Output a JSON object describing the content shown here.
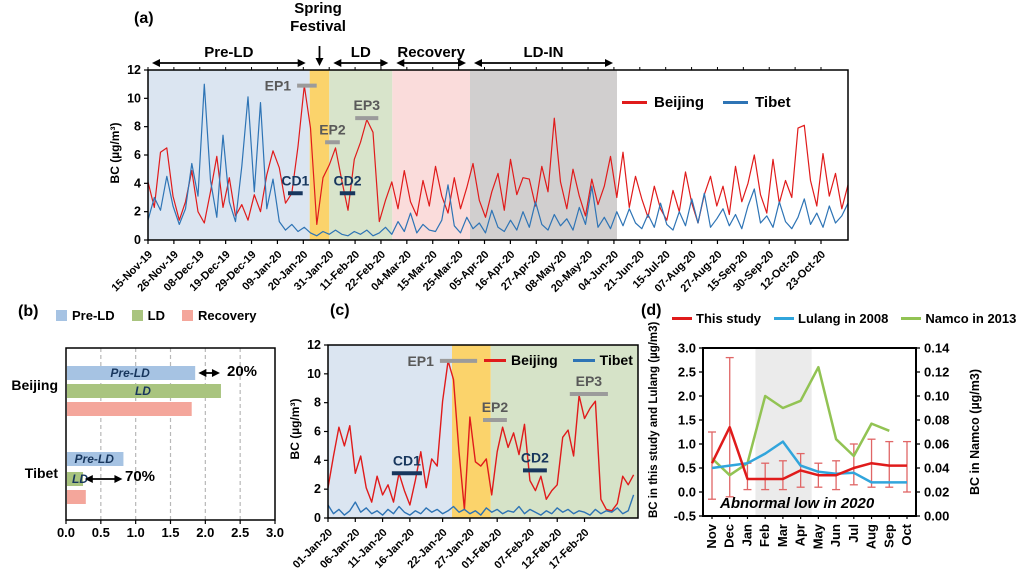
{
  "chart_data": {
    "a": {
      "panel_label": "(a)",
      "type": "line",
      "ylabel": "BC (µg/m³)",
      "ylim": [
        0,
        12
      ],
      "yticks": [
        0,
        2,
        4,
        6,
        8,
        10,
        12
      ],
      "xticklabels": [
        "15-Nov-19",
        "26-Nov-19",
        "08-Dec-19",
        "19-Dec-19",
        "29-Dec-19",
        "09-Jan-20",
        "20-Jan-20",
        "31-Jan-20",
        "11-Feb-20",
        "22-Feb-20",
        "04-Mar-20",
        "15-Mar-20",
        "25-Mar-20",
        "05-Apr-20",
        "16-Apr-20",
        "27-Apr-20",
        "08-May-20",
        "20-May-20",
        "04-Jun-20",
        "21-Jun-20",
        "15-Jul-20",
        "07-Aug-20",
        "27-Aug-20",
        "15-Sep-20",
        "30-Sep-20",
        "12-Oct-20",
        "23-Oct-20"
      ],
      "legend": [
        {
          "label": "Beijing",
          "color": "#e01b1b"
        },
        {
          "label": "Tibet",
          "color": "#2e74b5"
        }
      ],
      "periods": [
        {
          "label": "Pre-LD",
          "f1": 0.0,
          "f2": 0.231,
          "color": "#dbe5f1",
          "arrow": true
        },
        {
          "label": "Spring\nFestival",
          "f1": 0.231,
          "f2": 0.259,
          "color": "#fbd36b",
          "arrow": false
        },
        {
          "label": "LD",
          "f1": 0.259,
          "f2": 0.349,
          "color": "#d8e4cb",
          "arrow": true
        },
        {
          "label": "Recovery",
          "f1": 0.349,
          "f2": 0.46,
          "color": "#fadcdb",
          "arrow": true
        },
        {
          "label": "LD-IN",
          "f1": 0.46,
          "f2": 0.67,
          "color": "#d1cfcf",
          "arrow": true
        }
      ],
      "markers": [
        {
          "label": "EP1",
          "value": 10.9,
          "f1": 0.213,
          "f2": 0.241,
          "color": "#9b9b9b",
          "text_color": "#595959",
          "pos": "left"
        },
        {
          "label": "EP2",
          "value": 6.9,
          "f1": 0.253,
          "f2": 0.274,
          "color": "#9b9b9b",
          "text_color": "#595959",
          "pos": "top"
        },
        {
          "label": "EP3",
          "value": 8.6,
          "f1": 0.296,
          "f2": 0.329,
          "color": "#9b9b9b",
          "text_color": "#595959",
          "pos": "top"
        },
        {
          "label": "CD1",
          "value": 3.3,
          "f1": 0.2,
          "f2": 0.221,
          "color": "#17365d",
          "text_color": "#17365d",
          "pos": "top"
        },
        {
          "label": "CD2",
          "value": 3.3,
          "f1": 0.274,
          "f2": 0.296,
          "color": "#17365d",
          "text_color": "#17365d",
          "pos": "top"
        }
      ],
      "series": [
        {
          "name": "Beijing",
          "color": "#e01b1b",
          "values": [
            4.1,
            2.3,
            6.2,
            6.5,
            3.1,
            1.4,
            2.7,
            4.9,
            2.0,
            1.2,
            3.4,
            5.9,
            2.3,
            4.4,
            1.7,
            2.5,
            1.4,
            3.2,
            2.0,
            4.6,
            6.3,
            5.1,
            2.6,
            3.3,
            6.6,
            10.9,
            7.9,
            1.1,
            4.4,
            5.3,
            6.5,
            4.2,
            2.1,
            5.7,
            6.9,
            8.5,
            7.6,
            1.3,
            2.8,
            4.1,
            2.2,
            4.9,
            2.7,
            1.7,
            4.2,
            2.4,
            5.2,
            3.1,
            1.9,
            4.4,
            2.2,
            3.7,
            5.4,
            2.8,
            1.6,
            3.4,
            4.7,
            2.1,
            5.7,
            3.2,
            4.4,
            4.3,
            2.4,
            5.2,
            3.4,
            8.6,
            4.1,
            2.2,
            5.0,
            3.1,
            1.7,
            4.3,
            2.5,
            3.8,
            5.9,
            3.0,
            6.2,
            2.3,
            4.5,
            2.9,
            1.6,
            3.8,
            2.2,
            1.4,
            3.5,
            2.0,
            4.8,
            2.6,
            1.2,
            3.2,
            4.5,
            2.4,
            3.8,
            1.8,
            5.2,
            2.7,
            4.0,
            6.0,
            3.2,
            1.9,
            5.7,
            2.6,
            4.2,
            3.0,
            7.9,
            8.1,
            4.2,
            2.4,
            6.1,
            3.1,
            4.7,
            2.2,
            3.9
          ]
        },
        {
          "name": "Tibet",
          "color": "#2e74b5",
          "values": [
            1.4,
            3.0,
            2.1,
            4.5,
            2.4,
            1.1,
            2.2,
            5.4,
            3.1,
            11.0,
            4.2,
            1.6,
            7.4,
            2.7,
            1.3,
            5.2,
            10.1,
            3.4,
            9.7,
            2.2,
            4.3,
            1.3,
            0.7,
            1.1,
            0.6,
            0.9,
            0.5,
            0.3,
            0.6,
            0.4,
            0.7,
            0.4,
            0.3,
            0.6,
            0.4,
            0.7,
            0.3,
            0.5,
            0.9,
            0.4,
            1.3,
            0.6,
            1.9,
            0.5,
            1.1,
            0.7,
            0.6,
            1.4,
            3.9,
            1.0,
            0.5,
            1.6,
            0.8,
            1.2,
            0.5,
            2.1,
            0.9,
            0.6,
            1.4,
            0.7,
            2.0,
            0.9,
            2.7,
            1.1,
            0.7,
            1.8,
            1.0,
            1.5,
            0.7,
            2.3,
            1.1,
            3.8,
            0.9,
            1.6,
            0.8,
            2.0,
            1.0,
            2.2,
            1.2,
            0.8,
            1.8,
            0.9,
            2.6,
            1.1,
            0.7,
            2.0,
            1.0,
            2.9,
            1.2,
            3.3,
            0.9,
            1.5,
            2.2,
            1.0,
            1.8,
            0.8,
            2.4,
            3.6,
            1.2,
            1.7,
            0.9,
            2.7,
            1.3,
            0.8,
            1.6,
            2.9,
            1.1,
            1.9,
            0.9,
            2.4,
            1.2,
            1.7,
            2.6
          ]
        }
      ]
    },
    "b": {
      "panel_label": "(b)",
      "type": "bar",
      "legend": [
        {
          "label": "Pre-LD",
          "color": "#a6c3e3"
        },
        {
          "label": "LD",
          "color": "#a9c47f"
        },
        {
          "label": "Recovery",
          "color": "#f4a69b"
        }
      ],
      "groups": [
        "Beijing",
        "Tibet"
      ],
      "series": [
        {
          "name": "Pre-LD",
          "color": "#a6c3e3",
          "values": [
            1.84,
            0.81
          ]
        },
        {
          "name": "LD",
          "color": "#a9c47f",
          "values": [
            2.21,
            0.23
          ]
        },
        {
          "name": "Recovery",
          "color": "#f4a69b",
          "values": [
            1.79,
            0.27
          ]
        }
      ],
      "bar_labels": [
        {
          "group": 0,
          "series": 0,
          "text": "Pre-LD"
        },
        {
          "group": 0,
          "series": 1,
          "text": "LD"
        },
        {
          "group": 1,
          "series": 0,
          "text": "Pre-LD"
        },
        {
          "group": 1,
          "series": 1,
          "text": "LD"
        }
      ],
      "annotations": [
        {
          "label": "20%",
          "group": 0,
          "row": 0,
          "from": 1.9,
          "to": 2.21
        },
        {
          "label": "70%",
          "group": 1,
          "row": 1,
          "from": 0.27,
          "to": 0.81
        }
      ],
      "xlim": [
        0,
        3
      ],
      "xticks": [
        "0.0",
        "0.5",
        "1.0",
        "1.5",
        "2.0",
        "2.5",
        "3.0"
      ]
    },
    "c": {
      "panel_label": "(c)",
      "type": "line",
      "ylabel": "BC (µg/m³)",
      "ylim": [
        0,
        12
      ],
      "yticks": [
        0,
        2,
        4,
        6,
        8,
        10,
        12
      ],
      "xticklabels": [
        "01-Jan-20",
        "06-Jan-20",
        "11-Jan-20",
        "16-Jan-20",
        "22-Jan-20",
        "27-Jan-20",
        "01-Feb-20",
        "07-Feb-20",
        "12-Feb-20",
        "17-Feb-20"
      ],
      "xtick_days": [
        0,
        5,
        10,
        15,
        21,
        26,
        31,
        37,
        42,
        47
      ],
      "day_span": 56.8,
      "legend": [
        {
          "label": "Beijing",
          "color": "#e01b1b"
        },
        {
          "label": "Tibet",
          "color": "#2e74b5"
        }
      ],
      "regions": [
        {
          "f1": 0.0,
          "f2": 0.4,
          "color": "#dbe5f1"
        },
        {
          "f1": 0.4,
          "f2": 0.525,
          "color": "#fbd36b"
        },
        {
          "f1": 0.525,
          "f2": 1.0,
          "color": "#d6e3c8"
        }
      ],
      "markers": [
        {
          "label": "EP1",
          "value": 10.9,
          "f1": 0.361,
          "f2": 0.481,
          "color": "#9b9b9b",
          "text_color": "#595959",
          "pos": "left"
        },
        {
          "label": "EP2",
          "value": 6.8,
          "f1": 0.5,
          "f2": 0.577,
          "color": "#9b9b9b",
          "text_color": "#595959",
          "pos": "top"
        },
        {
          "label": "EP3",
          "value": 8.6,
          "f1": 0.78,
          "f2": 0.903,
          "color": "#9b9b9b",
          "text_color": "#595959",
          "pos": "top"
        },
        {
          "label": "CD1",
          "value": 3.1,
          "f1": 0.206,
          "f2": 0.303,
          "color": "#17365d",
          "text_color": "#17365d",
          "pos": "top"
        },
        {
          "label": "CD2",
          "value": 3.3,
          "f1": 0.629,
          "f2": 0.706,
          "color": "#17365d",
          "text_color": "#17365d",
          "pos": "top"
        }
      ],
      "series": [
        {
          "name": "Beijing",
          "color": "#e01b1b",
          "values": [
            2.1,
            4.3,
            6.3,
            5.0,
            6.4,
            3.1,
            4.3,
            2.1,
            1.1,
            2.9,
            1.6,
            2.3,
            1.1,
            3.1,
            1.9,
            0.9,
            2.6,
            4.6,
            2.1,
            4.1,
            3.6,
            8.1,
            10.9,
            9.6,
            4.6,
            0.6,
            7.0,
            3.9,
            3.6,
            4.1,
            1.6,
            4.6,
            6.3,
            4.9,
            5.9,
            4.4,
            6.5,
            2.6,
            1.9,
            2.9,
            1.3,
            1.9,
            2.3,
            5.6,
            6.1,
            4.3,
            8.5,
            6.9,
            7.6,
            8.1,
            1.3,
            0.6,
            0.5,
            1.0,
            2.9,
            2.3,
            3.0
          ]
        },
        {
          "name": "Tibet",
          "color": "#2e74b5",
          "values": [
            0.9,
            0.3,
            0.6,
            0.2,
            0.5,
            1.1,
            0.4,
            0.7,
            0.3,
            0.5,
            0.2,
            0.6,
            0.3,
            0.8,
            0.4,
            0.2,
            0.5,
            0.3,
            0.7,
            0.4,
            0.6,
            0.3,
            0.5,
            0.8,
            0.4,
            0.6,
            0.3,
            0.5,
            0.2,
            0.7,
            0.4,
            0.6,
            0.3,
            0.5,
            0.4,
            0.8,
            0.3,
            0.6,
            0.4,
            0.2,
            0.5,
            0.3,
            0.7,
            0.4,
            0.6,
            0.3,
            0.5,
            0.4,
            0.2,
            0.6,
            0.3,
            0.5,
            0.4,
            0.7,
            0.3,
            0.5,
            1.6
          ]
        }
      ]
    },
    "d": {
      "panel_label": "(d)",
      "type": "line",
      "categories": [
        "Nov",
        "Dec",
        "Jan",
        "Feb",
        "Mar",
        "Apr",
        "May",
        "Jun",
        "Jul",
        "Aug",
        "Sep",
        "Oct"
      ],
      "ylabel_left": "BC in this study and Lulang (µg/m3)",
      "ylabel_right": "BC in Namco (µg/m3)",
      "ylim_left": [
        -0.5,
        3.0
      ],
      "yticks_left": [
        "3.0",
        "2.5",
        "2.0",
        "1.5",
        "1.0",
        "0.5",
        "0.0",
        "-0.5"
      ],
      "ylim_right": [
        0,
        0.14
      ],
      "yticks_right": [
        "0.14",
        "0.12",
        "0.10",
        "0.08",
        "0.06",
        "0.04",
        "0.02",
        "0.00"
      ],
      "legend": [
        {
          "label": "This study",
          "color": "#e01b1b"
        },
        {
          "label": "Lulang in 2008",
          "color": "#31a5dc"
        },
        {
          "label": "Namco in 2013",
          "color": "#92c353"
        }
      ],
      "series": [
        {
          "name": "This study",
          "axis": "left",
          "color": "#e01b1b",
          "values": [
            0.6,
            1.35,
            0.27,
            0.27,
            0.27,
            0.45,
            0.35,
            0.35,
            0.5,
            0.6,
            0.55,
            0.55
          ],
          "err_lo": [
            -0.15,
            -0.1,
            0.05,
            0.05,
            0.05,
            0.1,
            0.1,
            0.05,
            0.15,
            0.1,
            0.1,
            0.0
          ],
          "err_hi": [
            1.25,
            2.8,
            0.6,
            0.6,
            0.65,
            0.8,
            0.6,
            0.65,
            1.0,
            1.1,
            1.05,
            1.05
          ]
        },
        {
          "name": "Lulang in 2008",
          "axis": "left",
          "color": "#31a5dc",
          "values": [
            0.5,
            0.55,
            0.6,
            0.8,
            1.05,
            0.55,
            0.42,
            0.38,
            0.4,
            0.2,
            0.2,
            0.2
          ]
        },
        {
          "name": "Namco in 2013",
          "axis": "right",
          "color": "#92c353",
          "values": [
            0.048,
            0.034,
            0.044,
            0.1,
            0.09,
            0.096,
            0.124,
            0.064,
            0.05,
            0.077,
            0.071,
            null
          ]
        }
      ],
      "error_bar_color": "#e06666",
      "shaded_band_color": "#ebebeb",
      "shaded_months": [
        "Jan",
        "Apr"
      ],
      "annotation": "Abnormal low in 2020"
    }
  }
}
